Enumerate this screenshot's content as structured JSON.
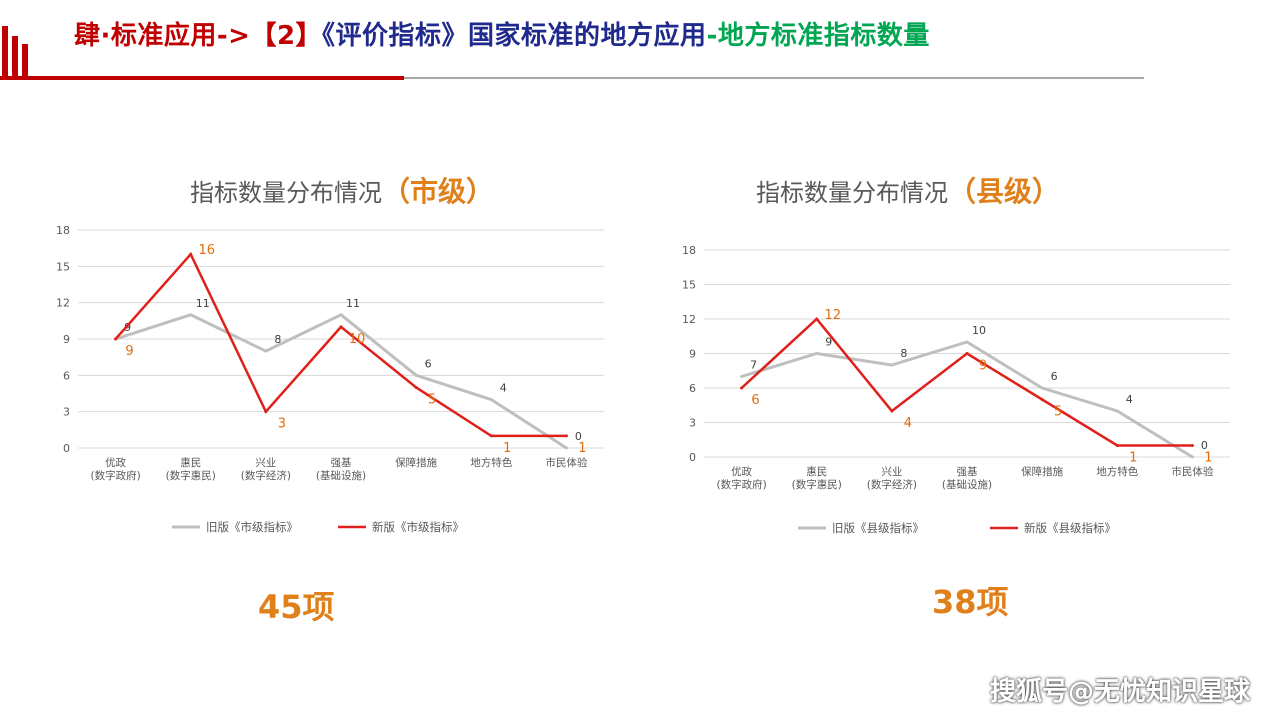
{
  "header": {
    "part1": "肆·标准应用->【2】",
    "part2": "《评价指标》国家标准的地方应用",
    "part3": "-地方标准指标数量"
  },
  "charts": [
    {
      "title": "指标数量分布情况",
      "title_accent": "（市级）",
      "total": "45项"
    },
    {
      "title": "指标数量分布情况",
      "title_accent": "（县级）",
      "total": "38项"
    }
  ],
  "chart_data": [
    {
      "type": "line",
      "title": "指标数量分布情况（市级）",
      "categories": [
        [
          "优政",
          "(数字政府)"
        ],
        [
          "惠民",
          "(数字惠民)"
        ],
        [
          "兴业",
          "(数字经济)"
        ],
        [
          "强基",
          "(基础设施)"
        ],
        [
          "保障措施"
        ],
        [
          "地方特色"
        ],
        [
          "市民体验"
        ]
      ],
      "series": [
        {
          "name": "旧版《市级指标》",
          "values": [
            9,
            11,
            8,
            11,
            6,
            4,
            0
          ],
          "color": "#bfbfbf"
        },
        {
          "name": "新版《市级指标》",
          "values": [
            9,
            16,
            3,
            10,
            5,
            1,
            1
          ],
          "color": "#e0201b"
        }
      ],
      "ylim": [
        0,
        18
      ],
      "yticks": [
        0,
        3,
        6,
        9,
        12,
        15,
        18
      ],
      "legend": "bottom"
    },
    {
      "type": "line",
      "title": "指标数量分布情况（县级）",
      "categories": [
        [
          "优政",
          "(数字政府)"
        ],
        [
          "惠民",
          "(数字惠民)"
        ],
        [
          "兴业",
          "(数字经济)"
        ],
        [
          "强基",
          "(基础设施)"
        ],
        [
          "保障措施"
        ],
        [
          "地方特色"
        ],
        [
          "市民体验"
        ]
      ],
      "series": [
        {
          "name": "旧版《县级指标》",
          "values": [
            7,
            9,
            8,
            10,
            6,
            4,
            0
          ],
          "color": "#bfbfbf"
        },
        {
          "name": "新版《县级指标》",
          "values": [
            6,
            12,
            4,
            9,
            5,
            1,
            1
          ],
          "color": "#e0201b"
        }
      ],
      "ylim": [
        0,
        18
      ],
      "yticks": [
        0,
        3,
        6,
        9,
        12,
        15,
        18
      ],
      "legend": "bottom"
    }
  ],
  "watermark": "搜狐号@无忧知识星球"
}
